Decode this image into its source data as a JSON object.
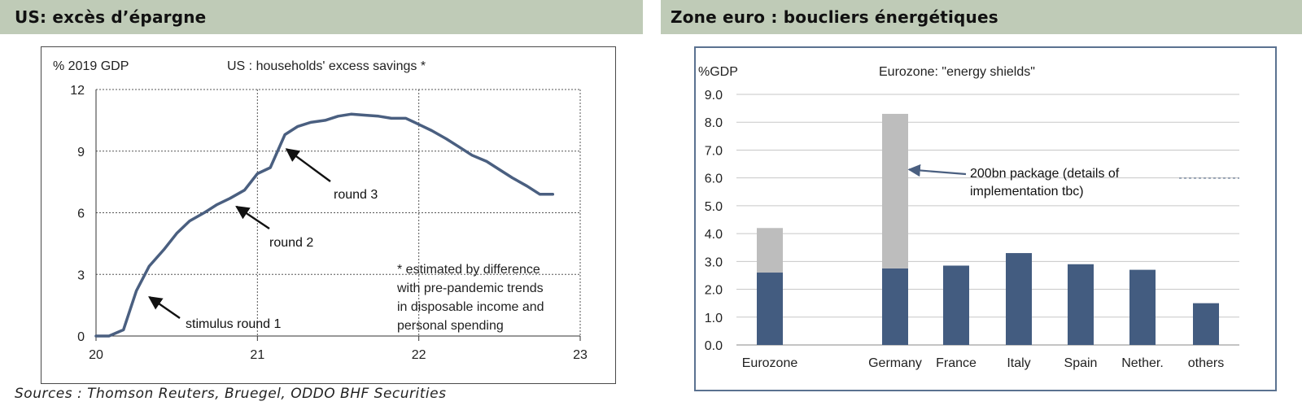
{
  "headers": {
    "left_title": "US: excès d’épargne",
    "right_title": "Zone euro : boucliers énergétiques"
  },
  "colors": {
    "header_bg": "#bfcbb7",
    "line": "#4a5f80",
    "bar_dark": "#435c80",
    "bar_light": "#bdbdbd",
    "right_border": "#5b7290"
  },
  "chart_data": [
    {
      "type": "line",
      "title": "US : households' excess savings *",
      "ylabel": "% 2019 GDP",
      "xlabel": "",
      "xlim": [
        20,
        23
      ],
      "ylim": [
        0,
        12
      ],
      "x_ticks": [
        "20",
        "21",
        "22",
        "23"
      ],
      "y_ticks": [
        "0",
        "3",
        "6",
        "9",
        "12"
      ],
      "grid": true,
      "series": [
        {
          "x": [
            20.0,
            20.08,
            20.17,
            20.25,
            20.33,
            20.42,
            20.5,
            20.58,
            20.67,
            20.75,
            20.83,
            20.92,
            21.0,
            21.08,
            21.17,
            21.25,
            21.33,
            21.42,
            21.5,
            21.58,
            21.67,
            21.75,
            21.83,
            21.92,
            22.0,
            22.08,
            22.17,
            22.25,
            22.33,
            22.42,
            22.5,
            22.58,
            22.67,
            22.75,
            22.83
          ],
          "y": [
            0.0,
            0.0,
            0.3,
            2.2,
            3.4,
            4.2,
            5.0,
            5.6,
            6.0,
            6.4,
            6.7,
            7.1,
            7.9,
            8.2,
            9.8,
            10.2,
            10.4,
            10.5,
            10.7,
            10.8,
            10.75,
            10.7,
            10.6,
            10.6,
            10.3,
            10.0,
            9.6,
            9.2,
            8.8,
            8.5,
            8.1,
            7.7,
            7.3,
            6.9,
            6.9
          ]
        }
      ],
      "annotations": [
        {
          "text": "stimulus round 1",
          "target_x": 20.33,
          "target_y": 1.9
        },
        {
          "text": "round 2",
          "target_x": 20.87,
          "target_y": 6.3
        },
        {
          "text": "round 3",
          "target_x": 21.18,
          "target_y": 9.1
        }
      ],
      "footnote": [
        "* estimated by difference",
        "with pre-pandemic trends",
        "in disposable income and",
        "personal spending"
      ]
    },
    {
      "type": "bar",
      "title": "Eurozone: \"energy shields\"",
      "ylabel": "%GDP",
      "xlabel": "",
      "ylim": [
        0,
        9
      ],
      "y_ticks": [
        "0.0",
        "1.0",
        "2.0",
        "3.0",
        "4.0",
        "5.0",
        "6.0",
        "7.0",
        "8.0",
        "9.0"
      ],
      "grid": true,
      "categories": [
        "Eurozone",
        "Germany",
        "France",
        "Italy",
        "Spain",
        "Nether.",
        "others"
      ],
      "series": [
        {
          "values": [
            2.6,
            2.75,
            2.85,
            3.3,
            2.9,
            2.7,
            1.5
          ]
        },
        {
          "values": [
            1.6,
            5.55,
            0,
            0,
            0,
            0,
            0
          ]
        }
      ],
      "annotation": {
        "lines": [
          "200bn package (details of",
          "implementation tbc)"
        ],
        "target_category": "Germany",
        "target_y": 6.3
      }
    }
  ],
  "sources": "Sources : Thomson Reuters, Bruegel, ODDO BHF Securities"
}
